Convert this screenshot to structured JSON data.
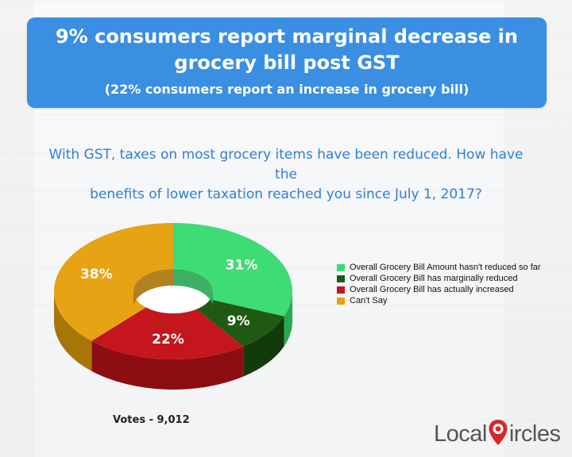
{
  "header": {
    "title_line1": "9% consumers report marginal decrease in",
    "title_line2": "grocery bill post GST",
    "subtitle": "(22% consumers report an increase in grocery bill)"
  },
  "question": {
    "line1": "With GST, taxes on most grocery items have been reduced. How have the",
    "line2": "benefits of lower taxation reached you since July 1, 2017?"
  },
  "votes_label": "Votes - 9,012",
  "logo": {
    "part1": "Local",
    "part2": "ircles",
    "pin_letter": "C",
    "pin_icon": "location-pin-icon"
  },
  "colors": {
    "banner": "#3a8fe3",
    "question_text": "#2f7fd6",
    "logo_red": "#d9262b"
  },
  "chart_data": {
    "type": "pie",
    "variant": "3d-donut",
    "categories": [
      "Overall Grocery Bill Amount hasn't reduced so far",
      "Overall Grocery Bill has marginally reduced",
      "Overall Grocery Bill has actually increased",
      "Can't Say"
    ],
    "values": [
      31,
      9,
      22,
      38
    ],
    "labels": [
      "31%",
      "9%",
      "22%",
      "38%"
    ],
    "colors": [
      "#3ddc74",
      "#1f5a12",
      "#c4161c",
      "#e6a314"
    ],
    "side_colors": [
      "#28a852",
      "#123a0a",
      "#8c0e13",
      "#a87508"
    ],
    "legend_position": "right"
  }
}
